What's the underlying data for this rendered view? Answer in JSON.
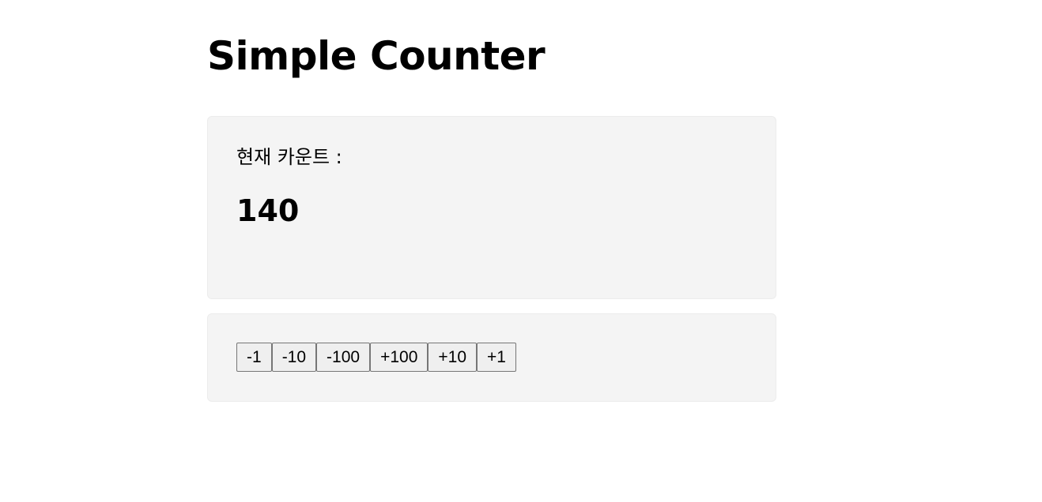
{
  "page": {
    "title": "Simple Counter"
  },
  "counter": {
    "label": "현재 카운트 :",
    "value": "140"
  },
  "controls": {
    "buttons": [
      "-1",
      "-10",
      "-100",
      "+100",
      "+10",
      "+1"
    ]
  },
  "colors": {
    "panel_background": "#f4f4f4",
    "button_background": "#efefef",
    "button_border": "#767676"
  }
}
